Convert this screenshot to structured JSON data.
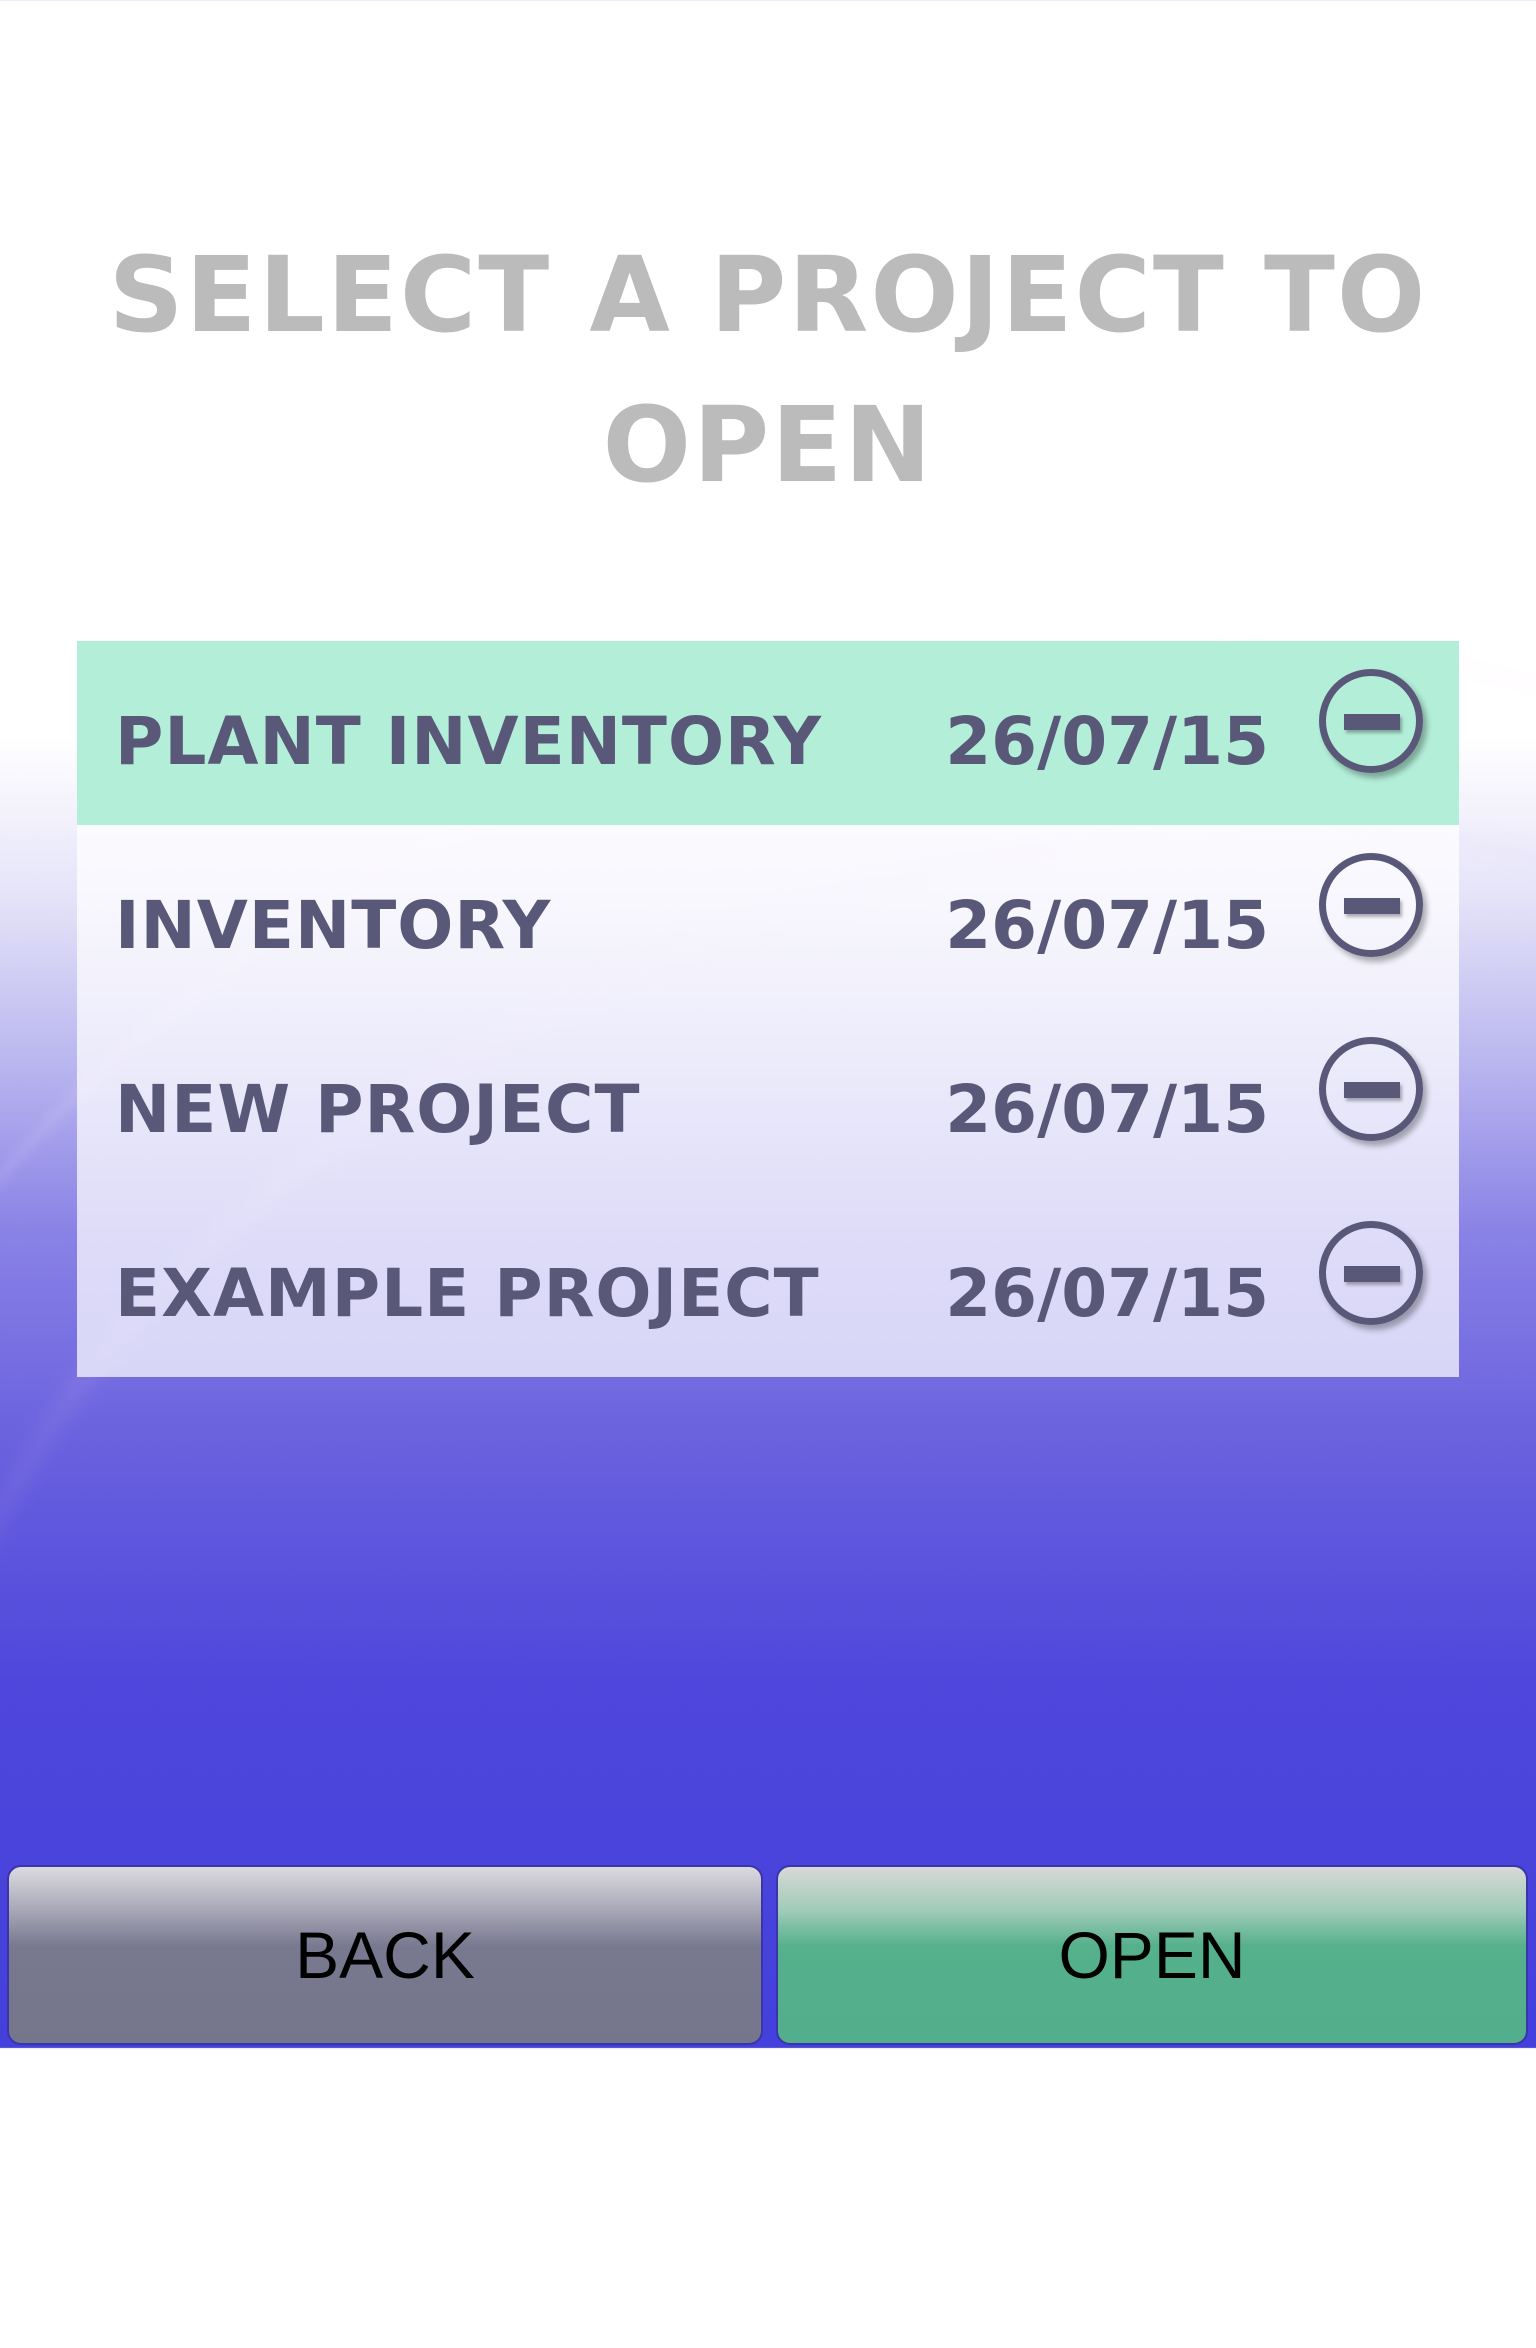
{
  "title": {
    "line1": "SELECT A PROJECT TO",
    "line2": "OPEN"
  },
  "projects": [
    {
      "name": "PLANT INVENTORY",
      "date": "26/07/15",
      "selected": true
    },
    {
      "name": "INVENTORY",
      "date": "26/07/15",
      "selected": false
    },
    {
      "name": "NEW PROJECT",
      "date": "26/07/15",
      "selected": false
    },
    {
      "name": "EXAMPLE PROJECT",
      "date": "26/07/15",
      "selected": false
    }
  ],
  "buttons": {
    "back": "BACK",
    "open": "OPEN"
  },
  "icons": {
    "delete": "minus-circle-icon"
  },
  "colors": {
    "selected_row": "#b3eed9",
    "text": "#5a5878",
    "open_button": "#52ae8c",
    "back_button": "#75758c",
    "title": "#bbbbbb"
  }
}
